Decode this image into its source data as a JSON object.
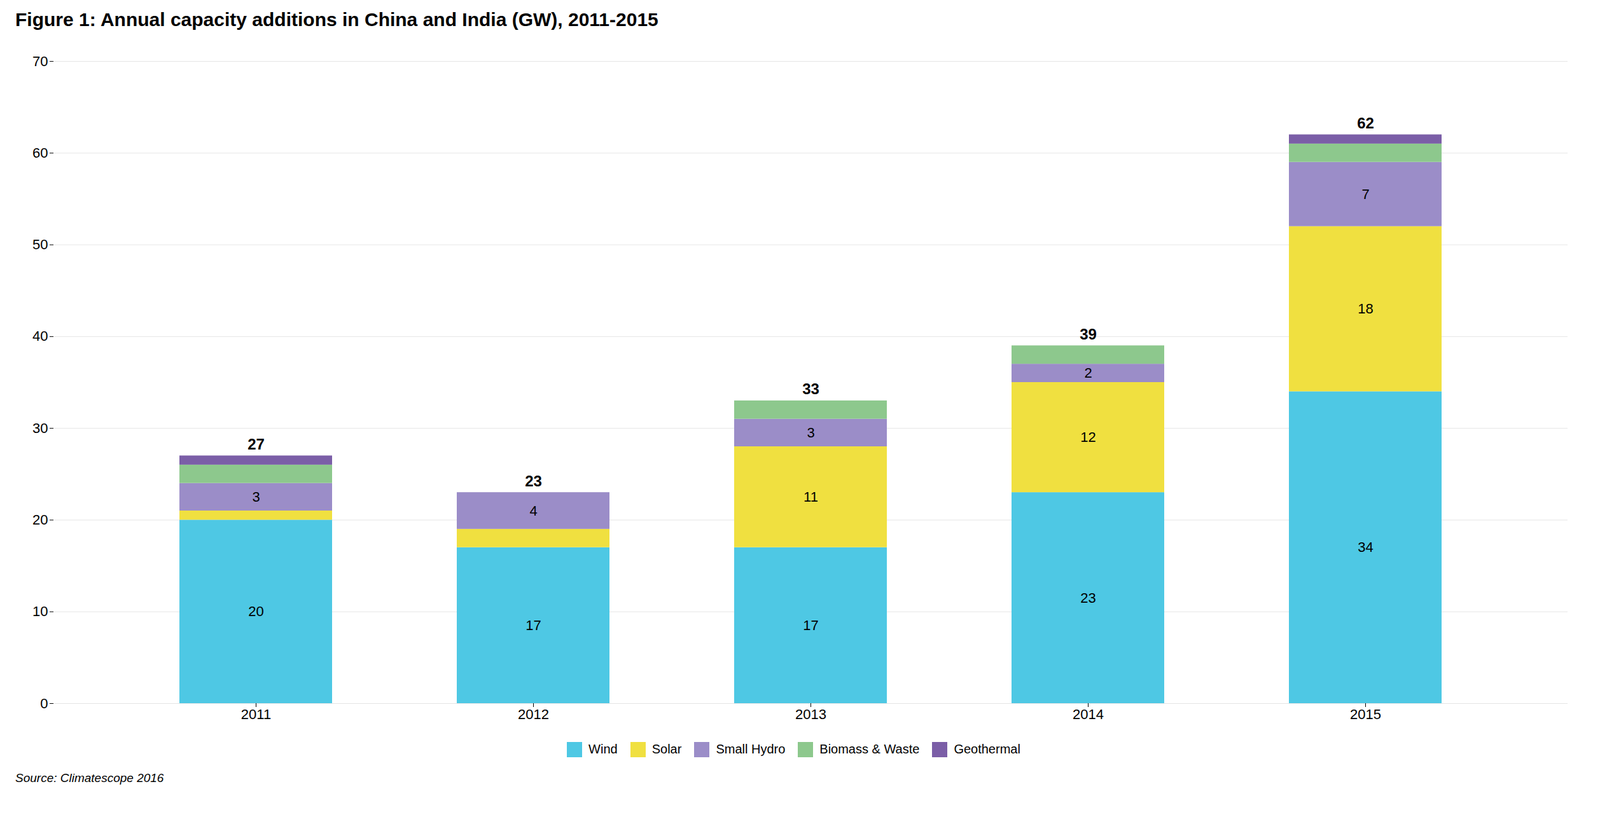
{
  "chart_data": {
    "type": "bar",
    "stacked": true,
    "title": "Figure 1: Annual capacity additions in China and India (GW), 2011-2015",
    "caption": "Source: Climatescope 2016",
    "categories": [
      "2011",
      "2012",
      "2013",
      "2014",
      "2015"
    ],
    "series": [
      {
        "name": "Wind",
        "color": "#4EC8E4",
        "values": [
          20,
          17,
          17,
          23,
          34
        ],
        "data_labels": true
      },
      {
        "name": "Solar",
        "color": "#F0E040",
        "values": [
          1,
          2,
          11,
          12,
          18
        ],
        "data_labels": true,
        "value_labels": [
          null,
          null,
          "11",
          "12",
          "18"
        ]
      },
      {
        "name": "Small Hydro",
        "color": "#9B8DC8",
        "values": [
          3,
          4,
          3,
          2,
          7
        ],
        "data_labels": true
      },
      {
        "name": "Biomass & Waste",
        "color": "#8DC88D",
        "values": [
          2,
          0,
          2,
          2,
          2
        ],
        "data_labels": false
      },
      {
        "name": "Geothermal",
        "color": "#7B5EA7",
        "values": [
          1,
          0,
          0,
          0,
          1
        ],
        "data_labels": false
      }
    ],
    "totals": [
      27,
      23,
      33,
      39,
      62
    ],
    "ylim": [
      0,
      70
    ],
    "yticks": [
      0,
      10,
      20,
      30,
      40,
      50,
      60,
      70
    ],
    "grid": true,
    "legend": "bottom"
  }
}
